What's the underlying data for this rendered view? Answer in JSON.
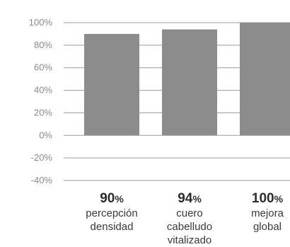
{
  "chart_data": {
    "type": "bar",
    "categories": [
      [
        "percepción",
        "densidad"
      ],
      [
        "cuero",
        "cabelludo",
        "vitalizado"
      ],
      [
        "mejora",
        "global"
      ]
    ],
    "values": [
      90,
      94,
      100
    ],
    "value_labels": [
      "90",
      "94",
      "100"
    ],
    "value_suffix": "%",
    "ylim": [
      -40,
      100
    ],
    "yticks": [
      100,
      80,
      60,
      40,
      20,
      0,
      -20,
      -40
    ],
    "ytick_labels": [
      "100%",
      "80%",
      "60%",
      "40%",
      "20%",
      "0%",
      "-20%",
      "-40%"
    ],
    "grid": true,
    "title": "",
    "xlabel": "",
    "ylabel": "",
    "colors": {
      "bar": "#8c8c8c",
      "grid": "#9a9a9a",
      "tick": "#8a8a8a",
      "value": "#2c2c2c"
    }
  }
}
